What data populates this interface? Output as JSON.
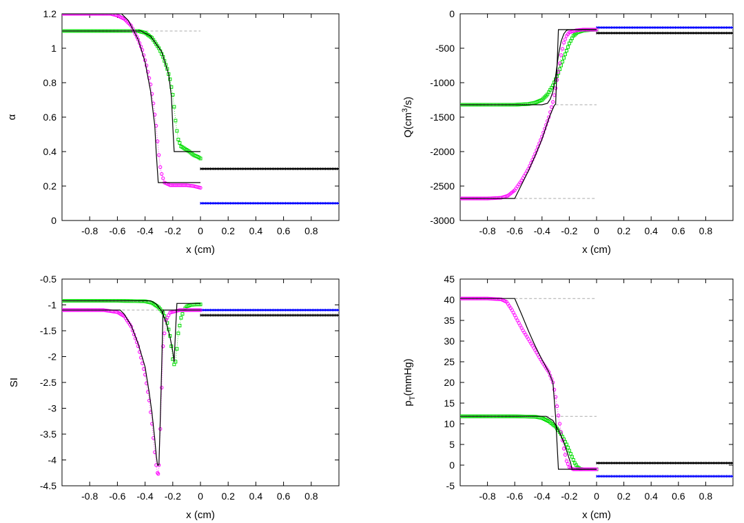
{
  "chart_data": [
    {
      "type": "line",
      "id": "alpha",
      "ylabel": "α",
      "ylabel_sub": "",
      "xlabel": "x (cm)",
      "xlim": [
        -1,
        1
      ],
      "ylim": [
        0,
        1.2
      ],
      "xticks": [
        -0.8,
        -0.6,
        -0.4,
        -0.2,
        0,
        0.2,
        0.4,
        0.6,
        0.8
      ],
      "xtick_labels": [
        "-0.8",
        "-0.6",
        "-0.4",
        "-0.2",
        "0",
        "0.2",
        "0.4",
        "0.6",
        "0.8"
      ],
      "yticks": [
        0,
        0.2,
        0.4,
        0.6,
        0.8,
        1,
        1.2
      ],
      "ytick_labels": [
        "0",
        "0.2",
        "0.4",
        "0.6",
        "0.8",
        "1",
        "1.2"
      ],
      "series": [
        {
          "name": "exact-1",
          "style": "solid",
          "color": "#000000",
          "x": [
            -1,
            -0.57,
            -0.52,
            -0.45,
            -0.4,
            -0.36,
            -0.33,
            -0.32,
            -0.305,
            -0.27,
            0
          ],
          "y": [
            1.2,
            1.2,
            1.16,
            1.05,
            0.92,
            0.75,
            0.55,
            0.4,
            0.22,
            0.22,
            0.22
          ]
        },
        {
          "name": "exact-2",
          "style": "solid",
          "color": "#000000",
          "x": [
            -1,
            -0.43,
            -0.36,
            -0.28,
            -0.23,
            -0.21,
            -0.2,
            -0.19,
            -0.17,
            0
          ],
          "y": [
            1.1,
            1.1,
            1.07,
            0.98,
            0.85,
            0.72,
            0.55,
            0.4,
            0.4,
            0.4
          ]
        },
        {
          "name": "numerical-magenta",
          "style": "markers",
          "marker": "circle",
          "color": "#ff00ff",
          "x": [
            -1,
            -0.8,
            -0.65,
            -0.6,
            -0.55,
            -0.5,
            -0.45,
            -0.42,
            -0.39,
            -0.36,
            -0.34,
            -0.32,
            -0.31,
            -0.3,
            -0.29,
            -0.28,
            -0.26,
            -0.22,
            -0.16,
            -0.1,
            -0.05,
            0
          ],
          "y": [
            1.2,
            1.2,
            1.2,
            1.19,
            1.17,
            1.13,
            1.05,
            0.99,
            0.9,
            0.79,
            0.68,
            0.55,
            0.46,
            0.38,
            0.31,
            0.27,
            0.22,
            0.205,
            0.205,
            0.205,
            0.2,
            0.19
          ]
        },
        {
          "name": "numerical-green",
          "style": "markers",
          "marker": "square",
          "color": "#00dd00",
          "x": [
            -1,
            -0.8,
            -0.6,
            -0.45,
            -0.4,
            -0.35,
            -0.3,
            -0.27,
            -0.24,
            -0.22,
            -0.2,
            -0.19,
            -0.18,
            -0.17,
            -0.16,
            -0.14,
            -0.12,
            -0.1,
            -0.08,
            -0.05,
            -0.02,
            0
          ],
          "y": [
            1.1,
            1.1,
            1.1,
            1.1,
            1.09,
            1.06,
            1.0,
            0.95,
            0.88,
            0.82,
            0.73,
            0.66,
            0.58,
            0.52,
            0.47,
            0.43,
            0.42,
            0.41,
            0.4,
            0.38,
            0.37,
            0.36
          ]
        },
        {
          "name": "right-state-black",
          "style": "markers",
          "marker": "tick",
          "color": "#000000",
          "x": [
            0,
            1
          ],
          "y": [
            0.3,
            0.3
          ]
        },
        {
          "name": "right-state-blue",
          "style": "markers",
          "marker": "tick",
          "color": "#0000ff",
          "x": [
            0,
            1
          ],
          "y": [
            0.1,
            0.1
          ]
        },
        {
          "name": "reference-gray",
          "style": "dashed",
          "color": "#aaaaaa",
          "x": [
            -0.5,
            0
          ],
          "y": [
            1.1,
            1.1
          ]
        }
      ]
    },
    {
      "type": "line",
      "id": "Q",
      "ylabel": "Q(cm",
      "ylabel_sup": "3",
      "ylabel_tail": "/s)",
      "xlabel": "x (cm)",
      "xlim": [
        -1,
        1
      ],
      "ylim": [
        -3000,
        0
      ],
      "xticks": [
        -0.8,
        -0.6,
        -0.4,
        -0.2,
        0,
        0.2,
        0.4,
        0.6,
        0.8
      ],
      "xtick_labels": [
        "-0.8",
        "-0.6",
        "-0.4",
        "-0.2",
        "0",
        "0.2",
        "0.4",
        "0.6",
        "0.8"
      ],
      "yticks": [
        -3000,
        -2500,
        -2000,
        -1500,
        -1000,
        -500,
        0
      ],
      "ytick_labels": [
        "-3000",
        "-2500",
        "-2000",
        "-1500",
        "-1000",
        "-500",
        "0"
      ],
      "series": [
        {
          "name": "exact-1",
          "style": "solid",
          "color": "#000000",
          "x": [
            -1,
            -0.6,
            -0.55,
            -0.5,
            -0.45,
            -0.4,
            -0.35,
            -0.33,
            -0.31,
            -0.3,
            -0.28,
            -0.2,
            -0.18,
            0
          ],
          "y": [
            -2680,
            -2680,
            -2480,
            -2280,
            -2060,
            -1820,
            -1520,
            -1420,
            -1330,
            -1310,
            -230,
            -230,
            -230,
            -230
          ]
        },
        {
          "name": "exact-2",
          "style": "solid",
          "color": "#000000",
          "x": [
            -1,
            -0.4,
            -0.36,
            -0.34,
            -0.32,
            -0.3,
            -0.28,
            -0.26,
            -0.24,
            -0.22,
            -0.2,
            -0.19,
            0
          ],
          "y": [
            -1320,
            -1320,
            -1300,
            -1240,
            -1130,
            -900,
            -600,
            -400,
            -290,
            -240,
            -230,
            -230,
            -230
          ]
        },
        {
          "name": "numerical-magenta",
          "style": "markers",
          "marker": "circle",
          "color": "#ff00ff",
          "x": [
            -1,
            -0.8,
            -0.7,
            -0.65,
            -0.6,
            -0.55,
            -0.5,
            -0.45,
            -0.4,
            -0.35,
            -0.32,
            -0.3,
            -0.28,
            -0.26,
            -0.24,
            -0.22,
            -0.2,
            -0.15,
            -0.1,
            -0.05,
            0
          ],
          "y": [
            -2680,
            -2680,
            -2670,
            -2640,
            -2560,
            -2420,
            -2250,
            -2030,
            -1780,
            -1500,
            -1280,
            -1080,
            -840,
            -600,
            -420,
            -320,
            -270,
            -240,
            -230,
            -230,
            -230
          ]
        },
        {
          "name": "numerical-green",
          "style": "markers",
          "marker": "square",
          "color": "#00dd00",
          "x": [
            -1,
            -0.8,
            -0.6,
            -0.5,
            -0.45,
            -0.4,
            -0.36,
            -0.32,
            -0.28,
            -0.24,
            -0.2,
            -0.17,
            -0.14,
            -0.1,
            -0.05,
            0
          ],
          "y": [
            -1320,
            -1320,
            -1320,
            -1310,
            -1290,
            -1250,
            -1170,
            -1040,
            -860,
            -640,
            -430,
            -320,
            -270,
            -245,
            -235,
            -230
          ]
        },
        {
          "name": "right-state-black",
          "style": "markers",
          "marker": "tick",
          "color": "#000000",
          "x": [
            0,
            1
          ],
          "y": [
            -280,
            -280
          ]
        },
        {
          "name": "right-state-blue",
          "style": "markers",
          "marker": "tick",
          "color": "#0000ff",
          "x": [
            0,
            1
          ],
          "y": [
            -200,
            -200
          ]
        },
        {
          "name": "reference-gray-1",
          "style": "dashed",
          "color": "#aaaaaa",
          "x": [
            -0.3,
            0
          ],
          "y": [
            -1320,
            -1320
          ]
        },
        {
          "name": "reference-gray-2",
          "style": "dashed",
          "color": "#aaaaaa",
          "x": [
            -0.6,
            0
          ],
          "y": [
            -2680,
            -2680
          ]
        }
      ]
    },
    {
      "type": "line",
      "id": "SI",
      "ylabel": "SI",
      "ylabel_sub": "",
      "xlabel": "x (cm)",
      "xlim": [
        -1,
        1
      ],
      "ylim": [
        -4.5,
        -0.5
      ],
      "xticks": [
        -0.8,
        -0.6,
        -0.4,
        -0.2,
        0,
        0.2,
        0.4,
        0.6,
        0.8
      ],
      "xtick_labels": [
        "-0.8",
        "-0.6",
        "-0.4",
        "-0.2",
        "0",
        "0.2",
        "0.4",
        "0.6",
        "0.8"
      ],
      "yticks": [
        -4.5,
        -4,
        -3.5,
        -3,
        -2.5,
        -2,
        -1.5,
        -1,
        -0.5
      ],
      "ytick_labels": [
        "-4.5",
        "-4",
        "-3.5",
        "-3",
        "-2.5",
        "-2",
        "-1.5",
        "-1",
        "-0.5"
      ],
      "series": [
        {
          "name": "exact-1",
          "style": "solid",
          "color": "#000000",
          "x": [
            -1,
            -0.58,
            -0.55,
            -0.5,
            -0.45,
            -0.4,
            -0.37,
            -0.35,
            -0.33,
            -0.32,
            -0.31,
            -0.3,
            -0.29,
            -0.28,
            -0.27,
            -0.2,
            0
          ],
          "y": [
            -1.1,
            -1.1,
            -1.18,
            -1.4,
            -1.75,
            -2.2,
            -2.7,
            -3.1,
            -3.6,
            -3.9,
            -4.1,
            -4.1,
            -3.2,
            -2.2,
            -1.1,
            -1.1,
            -1.1
          ]
        },
        {
          "name": "exact-2",
          "style": "solid",
          "color": "#000000",
          "x": [
            -1,
            -0.36,
            -0.32,
            -0.28,
            -0.25,
            -0.22,
            -0.2,
            -0.19,
            -0.18,
            -0.17,
            -0.16,
            -0.14,
            0
          ],
          "y": [
            -0.92,
            -0.92,
            -0.98,
            -1.12,
            -1.32,
            -1.62,
            -1.9,
            -2.1,
            -1.5,
            -0.97,
            -0.97,
            -0.97,
            -0.97
          ]
        },
        {
          "name": "numerical-magenta",
          "style": "markers",
          "marker": "circle",
          "color": "#ff00ff",
          "x": [
            -1,
            -0.7,
            -0.6,
            -0.55,
            -0.5,
            -0.45,
            -0.4,
            -0.37,
            -0.35,
            -0.33,
            -0.32,
            -0.31,
            -0.305,
            -0.3,
            -0.29,
            -0.28,
            -0.27,
            -0.25,
            -0.22,
            -0.15,
            -0.1,
            0
          ],
          "y": [
            -1.1,
            -1.1,
            -1.14,
            -1.22,
            -1.42,
            -1.8,
            -2.35,
            -2.85,
            -3.3,
            -3.85,
            -4.1,
            -4.25,
            -4.27,
            -4.1,
            -3.4,
            -2.6,
            -1.8,
            -1.3,
            -1.15,
            -1.1,
            -1.1,
            -1.1
          ]
        },
        {
          "name": "numerical-green",
          "style": "markers",
          "marker": "square",
          "color": "#00dd00",
          "x": [
            -1,
            -0.6,
            -0.4,
            -0.35,
            -0.3,
            -0.27,
            -0.24,
            -0.22,
            -0.21,
            -0.2,
            -0.19,
            -0.18,
            -0.17,
            -0.16,
            -0.14,
            -0.12,
            -0.1,
            -0.07,
            -0.03,
            0
          ],
          "y": [
            -0.92,
            -0.92,
            -0.93,
            -0.96,
            -1.05,
            -1.15,
            -1.35,
            -1.6,
            -1.8,
            -2.05,
            -2.15,
            -2.1,
            -1.85,
            -1.55,
            -1.25,
            -1.1,
            -1.03,
            -1.0,
            -0.99,
            -0.99
          ]
        },
        {
          "name": "right-state-black",
          "style": "markers",
          "marker": "tick",
          "color": "#000000",
          "x": [
            0,
            1
          ],
          "y": [
            -1.2,
            -1.2
          ]
        },
        {
          "name": "right-state-blue",
          "style": "markers",
          "marker": "tick",
          "color": "#0000ff",
          "x": [
            0,
            1
          ],
          "y": [
            -1.1,
            -1.1
          ]
        },
        {
          "name": "reference-gray",
          "style": "dashed",
          "color": "#aaaaaa",
          "x": [
            -0.6,
            0
          ],
          "y": [
            -1.1,
            -1.1
          ]
        }
      ]
    },
    {
      "type": "line",
      "id": "pT",
      "ylabel": "p",
      "ylabel_sub": "T",
      "ylabel_tail": "(mmHg)",
      "xlabel": "x (cm)",
      "xlim": [
        -1,
        1
      ],
      "ylim": [
        -5,
        45
      ],
      "xticks": [
        -0.8,
        -0.6,
        -0.4,
        -0.2,
        0,
        0.2,
        0.4,
        0.6,
        0.8
      ],
      "xtick_labels": [
        "-0.8",
        "-0.6",
        "-0.4",
        "-0.2",
        "0",
        "0.2",
        "0.4",
        "0.6",
        "0.8"
      ],
      "yticks": [
        -5,
        0,
        5,
        10,
        15,
        20,
        25,
        30,
        35,
        40,
        45
      ],
      "ytick_labels": [
        "-5",
        "0",
        "5",
        "10",
        "15",
        "20",
        "25",
        "30",
        "35",
        "40",
        "45"
      ],
      "series": [
        {
          "name": "exact-1",
          "style": "solid",
          "color": "#000000",
          "x": [
            -1,
            -0.6,
            -0.55,
            -0.5,
            -0.45,
            -0.4,
            -0.35,
            -0.32,
            -0.3,
            -0.28,
            -0.2,
            0
          ],
          "y": [
            40.3,
            40.3,
            36.5,
            32.5,
            28.8,
            25.5,
            22.5,
            20.0,
            11.5,
            -1.0,
            -1.0,
            -1.0
          ]
        },
        {
          "name": "exact-2",
          "style": "solid",
          "color": "#000000",
          "x": [
            -1,
            -0.37,
            -0.32,
            -0.28,
            -0.24,
            -0.21,
            -0.19,
            -0.18,
            -0.16,
            0
          ],
          "y": [
            11.8,
            11.8,
            10.8,
            8.5,
            5.5,
            2.5,
            0.5,
            -1.0,
            -1.0,
            -1.0
          ]
        },
        {
          "name": "numerical-magenta",
          "style": "markers",
          "marker": "circle",
          "color": "#ff00ff",
          "x": [
            -1,
            -0.8,
            -0.7,
            -0.66,
            -0.62,
            -0.58,
            -0.54,
            -0.5,
            -0.45,
            -0.4,
            -0.35,
            -0.32,
            -0.3,
            -0.28,
            -0.26,
            -0.24,
            -0.22,
            -0.2,
            -0.17,
            -0.14,
            -0.1,
            -0.05,
            0
          ],
          "y": [
            40.3,
            40.3,
            40.1,
            39.5,
            37.5,
            35.0,
            32.6,
            30.5,
            27.8,
            25.0,
            22.5,
            20.0,
            16.5,
            12.0,
            8.0,
            4.0,
            1.0,
            -0.5,
            -1.0,
            -1.0,
            -1.0,
            -1.0,
            -1.0
          ]
        },
        {
          "name": "numerical-green",
          "style": "markers",
          "marker": "square",
          "color": "#00dd00",
          "x": [
            -1,
            -0.8,
            -0.6,
            -0.45,
            -0.4,
            -0.35,
            -0.3,
            -0.26,
            -0.22,
            -0.2,
            -0.18,
            -0.16,
            -0.14,
            -0.12,
            -0.1,
            -0.05,
            0
          ],
          "y": [
            11.8,
            11.8,
            11.8,
            11.7,
            11.4,
            10.6,
            9.3,
            7.5,
            5.0,
            3.5,
            2.0,
            0.5,
            -0.5,
            -0.9,
            -1.0,
            -1.0,
            -1.0
          ]
        },
        {
          "name": "right-state-black",
          "style": "markers",
          "marker": "tick",
          "color": "#000000",
          "x": [
            0,
            1
          ],
          "y": [
            0.5,
            0.5
          ]
        },
        {
          "name": "right-state-blue",
          "style": "markers",
          "marker": "tick",
          "color": "#0000ff",
          "x": [
            0,
            1
          ],
          "y": [
            -2.7,
            -2.7
          ]
        },
        {
          "name": "reference-gray-1",
          "style": "dashed",
          "color": "#aaaaaa",
          "x": [
            -0.6,
            0
          ],
          "y": [
            40.3,
            40.3
          ]
        },
        {
          "name": "reference-gray-2",
          "style": "dashed",
          "color": "#aaaaaa",
          "x": [
            -0.37,
            0
          ],
          "y": [
            11.8,
            11.8
          ]
        }
      ]
    }
  ]
}
